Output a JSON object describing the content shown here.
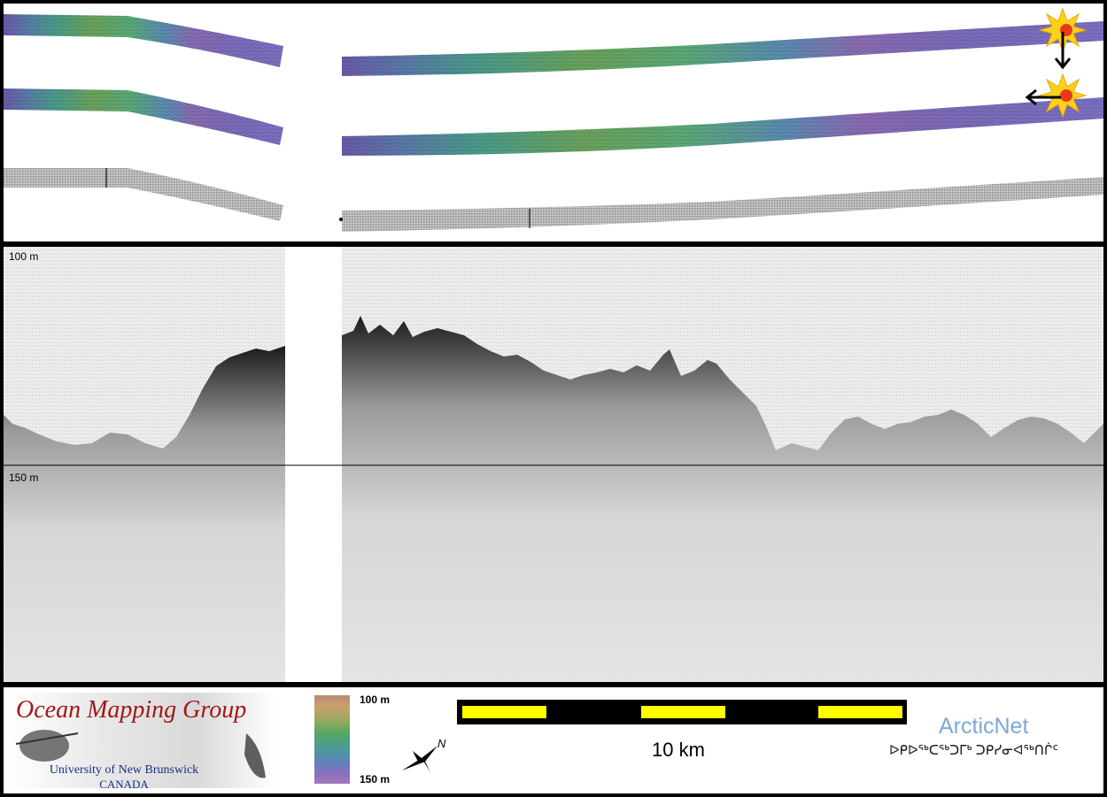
{
  "profile": {
    "depth_top_label": "100 m",
    "depth_mid_label": "150 m"
  },
  "legend": {
    "group_name": "Ocean Mapping Group",
    "university": "University of New Brunswick",
    "country": "CANADA",
    "colorbar_top": "100 m",
    "colorbar_bottom": "150 m",
    "scale_label": "10 km",
    "north_letter": "N",
    "partner": "ArcticNet",
    "partner_syllabics": "ᐅᑭᐅᖅᑕᖅᑐᒥᒃ ᑐᑭᓯᓂᐊᖅᑎᒌᑦ"
  },
  "colors": {
    "frame": "#000000",
    "scale_yellow": "#ffff00",
    "ogm_red": "#a01818",
    "ogm_blue": "#1a2a8a",
    "arcticnet_blue": "#7fa8d8"
  },
  "icons": [
    "sunburst-icon",
    "arrow-down-icon",
    "arrow-left-icon",
    "north-arrow-icon"
  ]
}
